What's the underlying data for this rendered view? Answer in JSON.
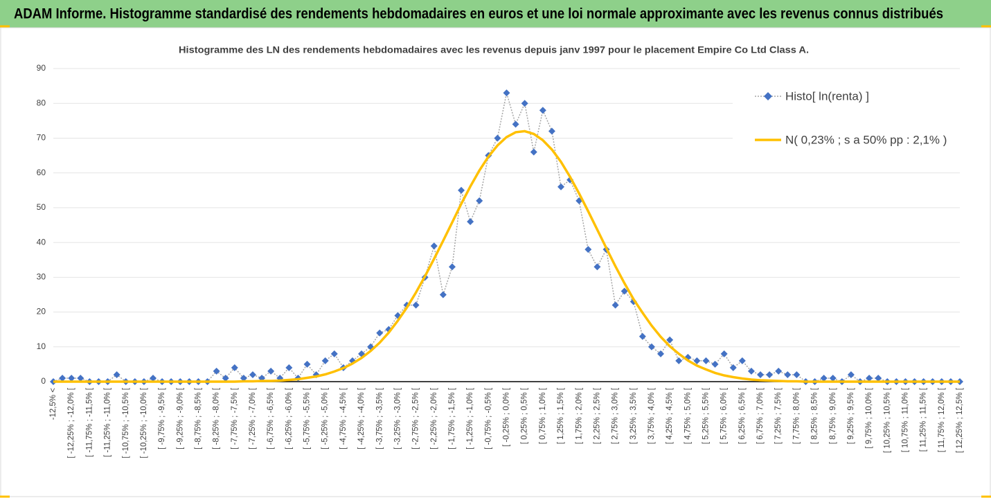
{
  "chart_data": {
    "type": "line",
    "banner": "ADAM Informe. Histogramme standardisé des rendements hebdomadaires en euros et une loi normale approximante avec les revenus connus distribués",
    "title": "Histogramme  des LN des rendements hebdomadaires avec les revenus depuis janv 1997 pour le placement Empire Co Ltd Class A.",
    "categories": [
      "-12,5% <",
      null,
      "[ -12,25% ; -12,0% [",
      null,
      "[ -11,75% ; -11,5% [",
      null,
      "[ -11,25% ; -11,0% [",
      null,
      "[ -10,75% ; -10,5% [",
      null,
      "[ -10,25% ; -10,0% [",
      null,
      "[ -9,75% ; -9,5% [",
      null,
      "[ -9,25% ; -9,0% [",
      null,
      "[ -8,75% ; -8,5% [",
      null,
      "[ -8,25% ; -8,0% [",
      null,
      "[ -7,75% ; -7,5% [",
      null,
      "[ -7,25% ; -7,0% [",
      null,
      "[ -6,75% ; -6,5% [",
      null,
      "[ -6,25% ; -6,0% [",
      null,
      "[ -5,75% ; -5,5% [",
      null,
      "[ -5,25% ; -5,0% [",
      null,
      "[ -4,75% ; -4,5% [",
      null,
      "[ -4,25% ; -4,0% [",
      null,
      "[ -3,75% ; -3,5% [",
      null,
      "[ -3,25% ; -3,0% [",
      null,
      "[ -2,75% ; -2,5% [",
      null,
      "[ -2,25% ; -2,0% [",
      null,
      "[ -1,75% ; -1,5% [",
      null,
      "[ -1,25% ; -1,0% [",
      null,
      "[ -0,75% ; -0,5% [",
      null,
      "[ -0,25% ; 0,0% [",
      null,
      "[ 0,25% ; 0,5% [",
      null,
      "[ 0,75% ; 1,0% [",
      null,
      "[ 1,25% ; 1,5% [",
      null,
      "[ 1,75% ; 2,0% [",
      null,
      "[ 2,25% ; 2,5% [",
      null,
      "[ 2,75% ; 3,0% [",
      null,
      "[ 3,25% ; 3,5% [",
      null,
      "[ 3,75% ; 4,0% [",
      null,
      "[ 4,25% ; 4,5% [",
      null,
      "[ 4,75% ; 5,0% [",
      null,
      "[ 5,25% ; 5,5% [",
      null,
      "[ 5,75% ; 6,0% [",
      null,
      "[ 6,25% ; 6,5% [",
      null,
      "[ 6,75% ; 7,0% [",
      null,
      "[ 7,25% ; 7,5% [",
      null,
      "[ 7,75% ; 8,0% [",
      null,
      "[ 8,25% ; 8,5% [",
      null,
      "[ 8,75% ; 9,0% [",
      null,
      "[ 9,25% ; 9,5% [",
      null,
      "[ 9,75% ; 10,0% [",
      null,
      "[ 10,25% ; 10,5% [",
      null,
      "[ 10,75% ; 11,0% [",
      null,
      "[ 11,25% ; 11,5% [",
      null,
      "[ 11,75% ; 12,0% [",
      null,
      "[ 12,25% ; 12,5% ["
    ],
    "series": [
      {
        "name": "Histo[ ln(renta) ]",
        "color": "#4472c4",
        "line_color": "#a5a5a5",
        "values": [
          0,
          1,
          1,
          1,
          0,
          0,
          0,
          2,
          0,
          0,
          0,
          1,
          0,
          0,
          0,
          0,
          0,
          0,
          3,
          1,
          4,
          1,
          2,
          1,
          3,
          1,
          4,
          1,
          5,
          2,
          6,
          8,
          4,
          6,
          8,
          10,
          14,
          15,
          19,
          22,
          22,
          30,
          39,
          25,
          33,
          55,
          46,
          52,
          65,
          70,
          83,
          74,
          80,
          66,
          78,
          72,
          56,
          58,
          52,
          38,
          33,
          38,
          22,
          26,
          23,
          13,
          10,
          8,
          12,
          6,
          7,
          6,
          6,
          5,
          8,
          4,
          6,
          3,
          2,
          2,
          3,
          2,
          2,
          0,
          0,
          1,
          1,
          0,
          2,
          0,
          1,
          1,
          0,
          0,
          0,
          0,
          0,
          0,
          0,
          0,
          0
        ]
      },
      {
        "name": "N( 0,23% ; s a 50% pp : 2,1% )",
        "color": "#ffc000",
        "values": [
          0,
          0,
          0,
          0,
          0,
          0,
          0,
          0,
          0,
          0,
          0,
          0,
          0,
          0,
          0,
          0,
          0,
          0,
          0,
          0,
          0,
          0.1,
          0.1,
          0.2,
          0.2,
          0.3,
          0.5,
          0.7,
          1.1,
          1.5,
          2.1,
          2.9,
          3.9,
          5.2,
          6.8,
          8.8,
          11.2,
          14.1,
          17.5,
          21.3,
          25.6,
          30.3,
          35.3,
          40.5,
          45.8,
          51.1,
          56.1,
          60.7,
          64.7,
          67.9,
          70.3,
          71.7,
          72.0,
          71.2,
          69.4,
          66.7,
          63.2,
          58.9,
          54.1,
          49.0,
          43.7,
          38.4,
          33.2,
          28.3,
          23.7,
          19.8,
          16.1,
          12.9,
          10.2,
          8.0,
          6.1,
          4.6,
          3.5,
          2.5,
          1.8,
          1.3,
          0.9,
          0.6,
          0.4,
          0.3,
          0.2,
          0.1,
          0.1,
          0,
          0,
          0,
          0,
          0,
          0,
          0,
          0,
          0,
          0,
          0,
          0,
          0,
          0,
          0,
          0,
          0,
          0
        ]
      }
    ],
    "ylim": [
      0,
      90
    ],
    "yticks": [
      0,
      10,
      20,
      30,
      40,
      50,
      60,
      70,
      80,
      90
    ],
    "grid": true
  }
}
